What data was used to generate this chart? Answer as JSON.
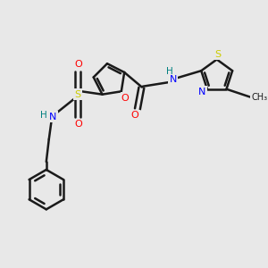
{
  "background_color": "#e8e8e8",
  "bond_color": "#1a1a1a",
  "atom_colors": {
    "O": "#ff0000",
    "N": "#0000ff",
    "S": "#cccc00",
    "H": "#008080",
    "C": "#1a1a1a"
  }
}
